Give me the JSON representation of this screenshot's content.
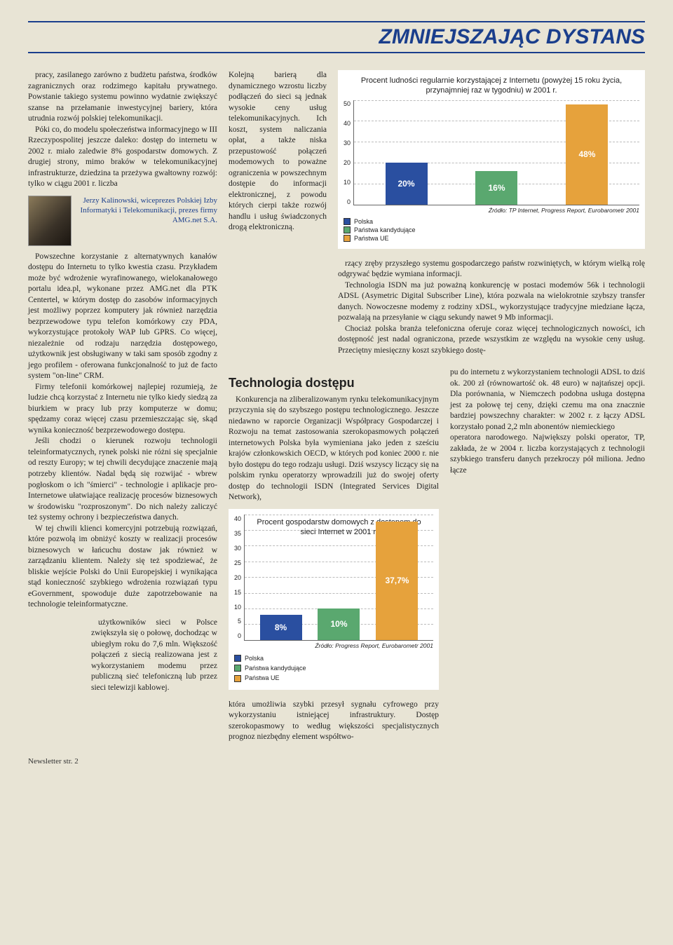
{
  "header": {
    "title": "ZMNIEJSZAJĄC DYSTANS"
  },
  "col1": {
    "p1": "pracy, zasilanego zarówno z budżetu państwa, środków zagranicznych oraz rodzimego kapitału prywatnego. Powstanie takiego systemu powinno wydatnie zwiększyć szanse na przełamanie inwestycyjnej bariery, która utrudnia rozwój polskiej telekomunikacji.",
    "p2": "Póki co, do modelu społeczeństwa informacyjnego w III Rzeczypospolitej jeszcze daleko: dostęp do internetu w 2002 r. miało zaledwie 8% gospodarstw domowych. Z drugiej strony, mimo braków w telekomunikacyjnej infrastrukturze, dziedzina ta przeżywa gwałtowny rozwój: tylko w ciągu 2001 r. liczba",
    "caption": "Jerzy Kalinowski, wiceprezes Polskiej Izby Informatyki i Telekomunikacji, prezes firmy AMG.net S.A.",
    "p3": "Powszechne korzystanie z alternatywnych kanałów dostępu do Internetu to tylko kwestia czasu. Przykładem może być wdrożenie wyrafinowanego, wielokanałowego portalu idea.pl, wykonane przez AMG.net dla PTK Centertel, w którym dostęp do zasobów informacyjnych jest możliwy poprzez komputery jak również narzędzia bezprzewodowe typu telefon komórkowy czy PDA, wykorzystujące protokoły WAP lub GPRS. Co więcej, niezależnie od rodzaju narzędzia dostępowego, użytkownik jest obsługiwany w taki sam sposób zgodny z jego profilem - oferowana funkcjonalność to już de facto system \"on-line\" CRM.",
    "p4": "Firmy telefonii komórkowej najlepiej rozumieją, że ludzie chcą korzystać z Internetu nie tylko kiedy siedzą za biurkiem w pracy lub przy komputerze w domu; spędzamy coraz więcej czasu przemieszczając się, skąd wynika konieczność bezprzewodowego dostępu.",
    "p5": "Jeśli chodzi o kierunek rozwoju technologii teleinformatycznych, rynek polski nie różni się specjalnie od reszty Europy; w tej chwili decydujące znaczenie mają potrzeby klientów. Nadal będą się rozwijać - wbrew pogłoskom o ich \"śmierci\" - technologie i aplikacje pro-Internetowe ułatwiające realizację procesów biznesowych w środowisku \"rozproszonym\". Do nich należy zaliczyć też systemy ochrony i bezpieczeństwa danych.",
    "p6": "W tej chwili klienci komercyjni potrzebują rozwiązań, które pozwolą im obniżyć koszty w realizacji procesów biznesowych w łańcuchu dostaw jak również w zarządzaniu klientem. Należy się też spodziewać, że bliskie wejście Polski do Unii Europejskiej i wynikająca stąd konieczność szybkiego wdrożenia rozwiązań typu eGovernment, spowoduje duże zapotrzebowanie na technologie teleinformatyczne.",
    "p7": "użytkowników sieci w Polsce zwiększyła się o połowę, dochodząc w ubiegłym roku do 7,6 mln. Większość połączeń z siecią realizowana jest z wykorzystaniem modemu przez publiczną sieć telefoniczną lub przez sieci telewizji kablowej."
  },
  "col2": {
    "p1": "Kolejną barierą dla dynamicznego wzrostu liczby podłączeń do sieci są jednak wysokie ceny usług telekomunikacyjnych. Ich koszt, system naliczania opłat, a także niska przepustowość połączeń modemowych to poważne ograniczenia w powszechnym dostępie do informacji elektronicznej, z powodu których cierpi także rozwój handlu i usług świadczonych drogą elektroniczną.",
    "section": "Technologia dostępu",
    "p2": "Konkurencja na zliberalizowanym rynku telekomunikacyjnym przyczynia się do szybszego postępu technologicznego. Jeszcze niedawno w raporcie Organizacji Współpracy Gospodarczej i Rozwoju na temat zastosowania szerokopasmowych połączeń internetowych Polska była wymieniana jako jeden z sześciu krajów członkowskich OECD, w których pod koniec 2000 r. nie było dostępu do tego rodzaju usługi. Dziś wszyscy liczący się na polskim rynku operatorzy wprowadzili już do swojej oferty dostęp do technologii ISDN (Integrated Services Digital Network),",
    "p3": "która umożliwia szybki przesył sygnału cyfrowego przy wykorzystaniu istniejącej infrastruktury. Dostęp szerokopasmowy to według większości specjalistycznych prognoz niezbędny element współtwo-"
  },
  "col3": {
    "p1": "rzący zręby przyszłego systemu gospodarczego państw rozwiniętych, w którym wielką rolę odgrywać będzie wymiana informacji.",
    "p2": "Technologia ISDN ma już poważną konkurencję w postaci modemów 56k i technologii ADSL (Asymetric Digital Subscriber Line), która pozwala na wielokrotnie szybszy transfer danych. Nowoczesne modemy z rodziny xDSL, wykorzystujące tradycyjne miedziane łącza, pozwalają na przesyłanie w ciągu sekundy nawet 9 Mb informacji.",
    "p3": "Chociaż polska branża telefoniczna oferuje coraz więcej technologicznych nowości, ich dostępność jest nadal ograniczona, przede wszystkim ze względu na wysokie ceny usług. Przeciętny miesięczny koszt szybkiego dostę-",
    "p4": "pu do internetu z wykorzystaniem technologii ADSL to dziś ok. 200 zł (równowartość ok. 48 euro) w najtańszej opcji. Dla porównania, w Niemczech podobna usługa dostępna jest za połowę tej ceny, dzięki czemu ma ona znacznie bardziej powszechny charakter: w 2002 r. z łączy ADSL korzystało ponad 2,2 mln abonentów niemieckiego",
    "p5": "operatora narodowego. Największy polski operator, TP, zakłada, że w 2004 r. liczba korzystających z technologii szybkiego transferu danych przekroczy pół miliona. Jedno łącze"
  },
  "chart1": {
    "title": "Procent ludności regularnie korzystającej z Internetu (powyżej 15 roku życia, przynajmniej raz w tygodniu) w 2001 r.",
    "yticks": [
      "50",
      "40",
      "30",
      "20",
      "10",
      "0"
    ],
    "height": 150,
    "max": 50,
    "bars": [
      {
        "label": "20%",
        "value": 20,
        "color": "#2a4fa0"
      },
      {
        "label": "16%",
        "value": 16,
        "color": "#5aa86f"
      },
      {
        "label": "48%",
        "value": 48,
        "color": "#e6a23c"
      }
    ],
    "source": "Źródło: TP Internet, Progress Report, Eurobarometr 2001",
    "legend": [
      {
        "color": "#2a4fa0",
        "label": "Polska"
      },
      {
        "color": "#5aa86f",
        "label": "Państwa kandydujące"
      },
      {
        "color": "#e6a23c",
        "label": "Państwa UE"
      }
    ]
  },
  "chart2": {
    "title": "Procent gospodarstw domowych z dostępem do sieci Internet w 2001 r.",
    "yticks": [
      "40",
      "35",
      "30",
      "25",
      "20",
      "15",
      "10",
      "5",
      "0"
    ],
    "height": 180,
    "max": 40,
    "bars": [
      {
        "label": "8%",
        "value": 8,
        "color": "#2a4fa0"
      },
      {
        "label": "10%",
        "value": 10,
        "color": "#5aa86f"
      },
      {
        "label": "37,7%",
        "value": 37.7,
        "color": "#e6a23c"
      }
    ],
    "source": "Źródło: Progress Report, Eurobarometr 2001",
    "legend": [
      {
        "color": "#2a4fa0",
        "label": "Polska"
      },
      {
        "color": "#5aa86f",
        "label": "Państwa kandydujące"
      },
      {
        "color": "#e6a23c",
        "label": "Państwa UE"
      }
    ]
  },
  "footer": {
    "text": "Newsletter str. 2"
  }
}
